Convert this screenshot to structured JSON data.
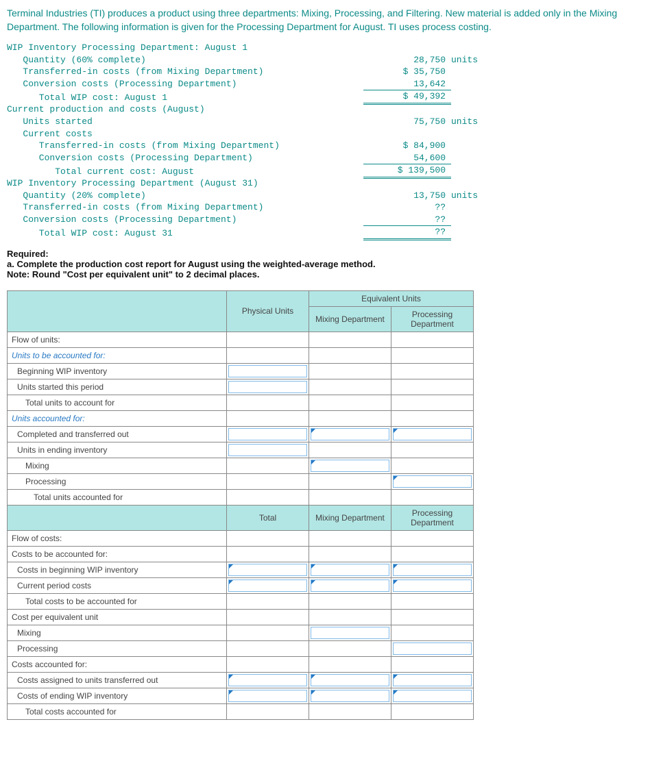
{
  "intro": "Terminal Industries (TI) produces a product using three departments: Mixing, Processing, and Filtering. New material is added only in the Mixing Department. The following information is given for the Processing Department for August. TI uses process costing.",
  "mono": {
    "h1": "WIP Inventory Processing Department: August 1",
    "l1": "   Quantity (60% complete)",
    "v1": "28,750",
    "u1": "units",
    "l2": "   Transferred-in costs (from Mixing Department)",
    "v2": "$ 35,750",
    "l3": "   Conversion costs (Processing Department)",
    "v3": "13,642",
    "l4": "      Total WIP cost: August 1",
    "v4": "$ 49,392",
    "h2": "Current production and costs (August)",
    "l5": "   Units started",
    "v5": "75,750",
    "u5": "units",
    "l6": "   Current costs",
    "l7": "      Transferred-in costs (from Mixing Department)",
    "v7": "$ 84,900",
    "l8": "      Conversion costs (Processing Department)",
    "v8": "54,600",
    "l9": "         Total current cost: August",
    "v9": "$ 139,500",
    "h3": "WIP Inventory Processing Department (August 31)",
    "l10": "   Quantity (20% complete)",
    "v10": "13,750",
    "u10": "units",
    "l11": "   Transferred-in costs (from Mixing Department)",
    "v11": "??",
    "l12": "   Conversion costs (Processing Department)",
    "v12": "??",
    "l13": "      Total WIP cost: August 31",
    "v13": "??"
  },
  "req": {
    "title": "Required:",
    "a": "a. Complete the production cost report for August using the weighted-average method.",
    "note": "Note: Round \"Cost per equivalent unit\" to 2 decimal places."
  },
  "ws": {
    "h_phys": "Physical Units",
    "h_equiv": "Equivalent Units",
    "h_mix": "Mixing Department",
    "h_proc": "Processing Department",
    "h_total": "Total",
    "rows_units": {
      "flow": "Flow of units:",
      "tobeacct": "Units to be accounted for:",
      "begwip": "Beginning WIP inventory",
      "started": "Units started this period",
      "totacct": "Total units to account for",
      "acctfor": "Units accounted for:",
      "compout": "Completed and transferred out",
      "endinv": "Units in ending inventory",
      "mix": "Mixing",
      "proc": "Processing",
      "totacctfor": "Total units accounted for"
    },
    "rows_costs": {
      "flowc": "Flow of costs:",
      "tobeacctc": "Costs to be accounted for:",
      "begwipc": "Costs in beginning WIP inventory",
      "curc": "Current period costs",
      "totc": "Total costs to be accounted for",
      "cpeu": "Cost per equivalent unit",
      "mixc": "Mixing",
      "procc": "Processing",
      "acctforc": "Costs accounted for:",
      "assignout": "Costs assigned to units transferred out",
      "endwipc": "Costs of ending WIP inventory",
      "totacctc": "Total costs accounted for"
    }
  }
}
